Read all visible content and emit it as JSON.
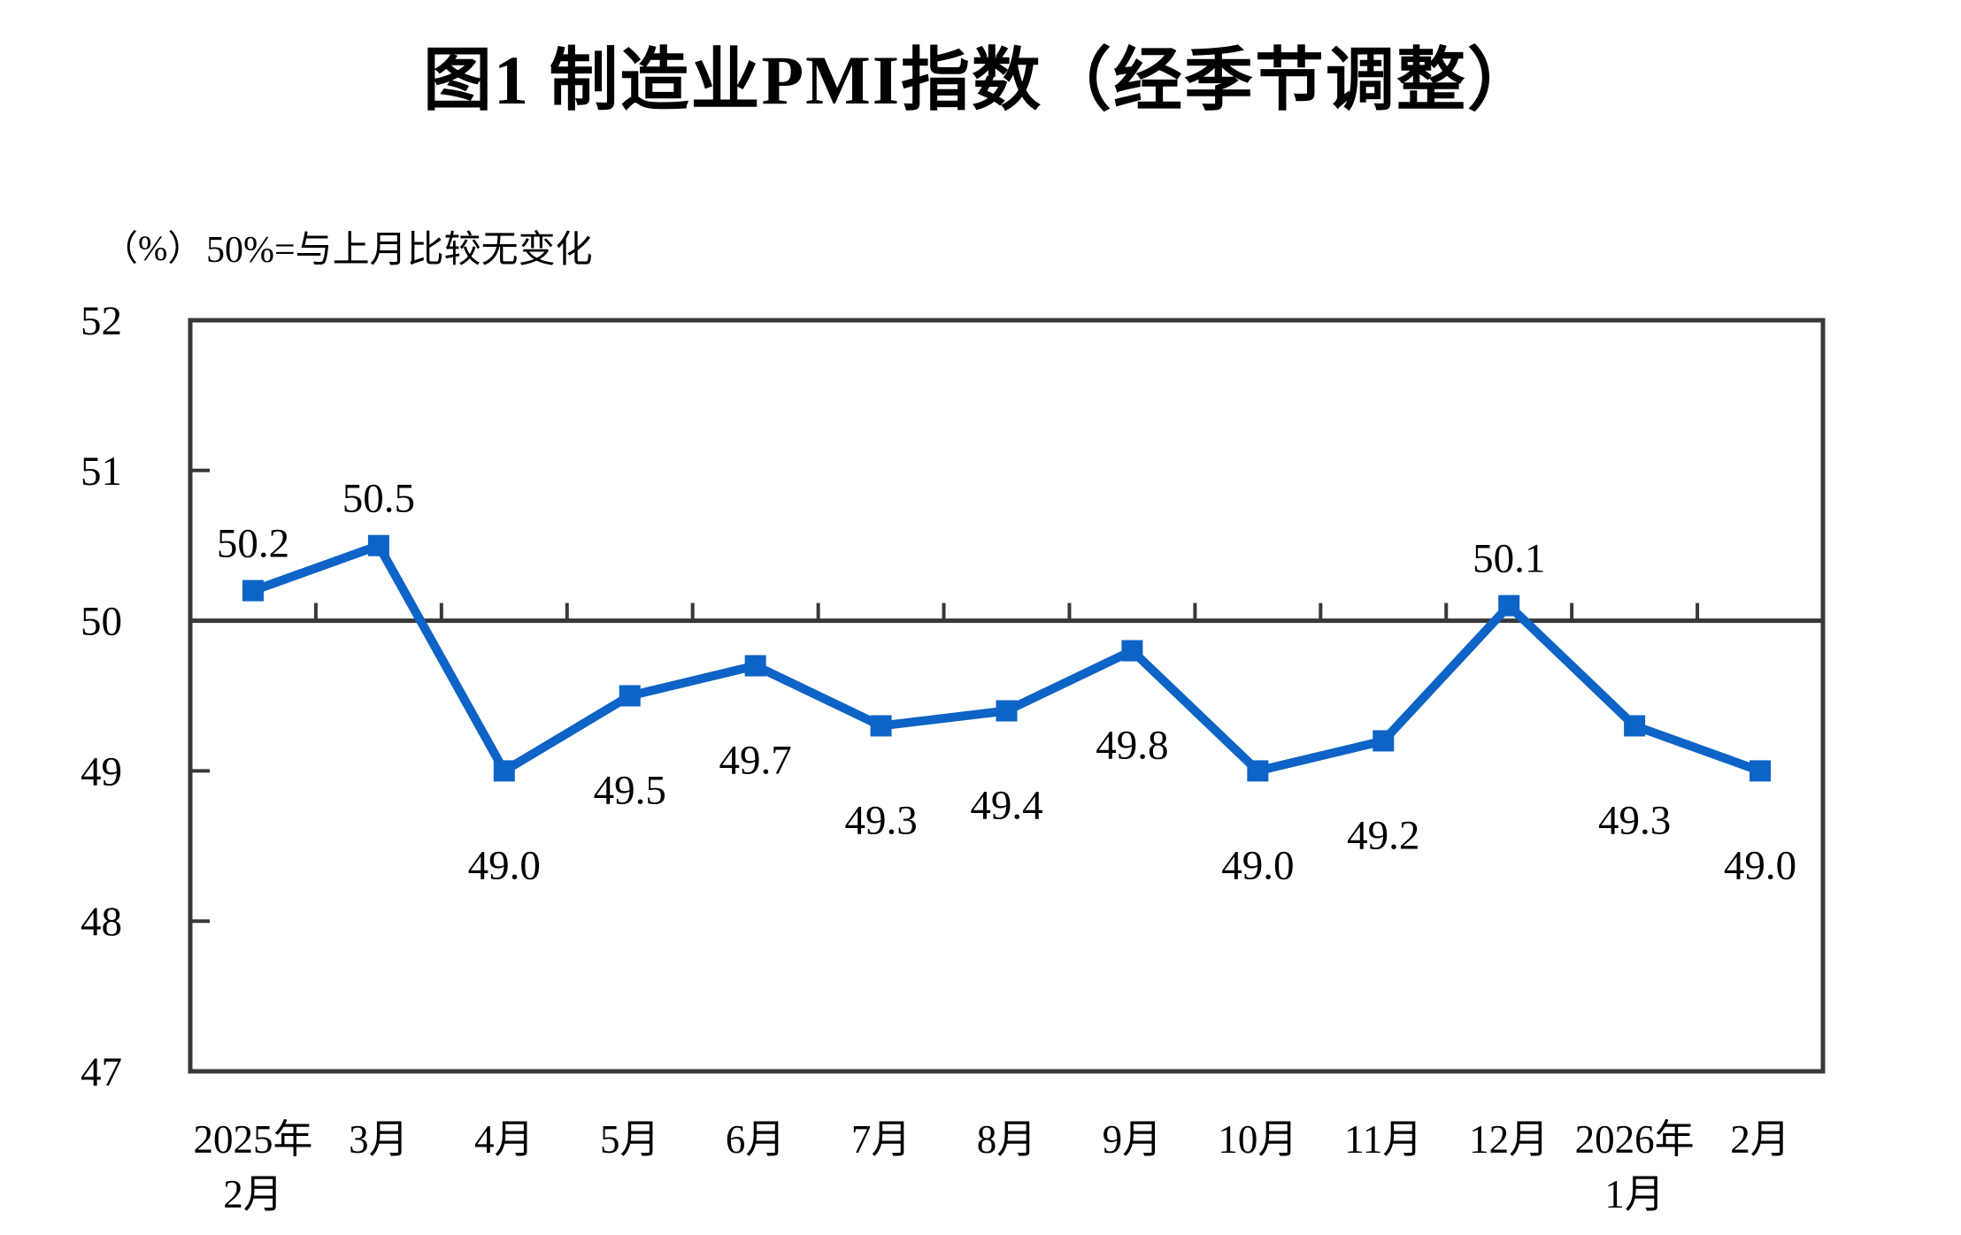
{
  "title": "图1  制造业PMI指数（经季节调整）",
  "unit_label": "（%）",
  "note": "50%=与上月比较无变化",
  "chart_data": {
    "type": "line",
    "series_name": "制造业PMI指数",
    "categories": [
      [
        "2025年",
        "2月"
      ],
      [
        "3月"
      ],
      [
        "4月"
      ],
      [
        "5月"
      ],
      [
        "6月"
      ],
      [
        "7月"
      ],
      [
        "8月"
      ],
      [
        "9月"
      ],
      [
        "10月"
      ],
      [
        "11月"
      ],
      [
        "12月"
      ],
      [
        "2026年",
        "1月"
      ],
      [
        "2月"
      ]
    ],
    "values": [
      50.2,
      50.5,
      49.0,
      49.5,
      49.7,
      49.3,
      49.4,
      49.8,
      49.0,
      49.2,
      50.1,
      49.3,
      49.0
    ],
    "data_labels": [
      "50.2",
      "50.5",
      "49.0",
      "49.5",
      "49.7",
      "49.3",
      "49.4",
      "49.8",
      "49.0",
      "49.2",
      "50.1",
      "49.3",
      "49.0"
    ],
    "ylim": [
      47,
      52
    ],
    "yticks": [
      47,
      48,
      49,
      50,
      51,
      52
    ],
    "reference_line": 50,
    "grid": false,
    "legend": "none",
    "line_color": "#0D63C6",
    "axis_color": "#383838",
    "text_color": "#000000"
  }
}
